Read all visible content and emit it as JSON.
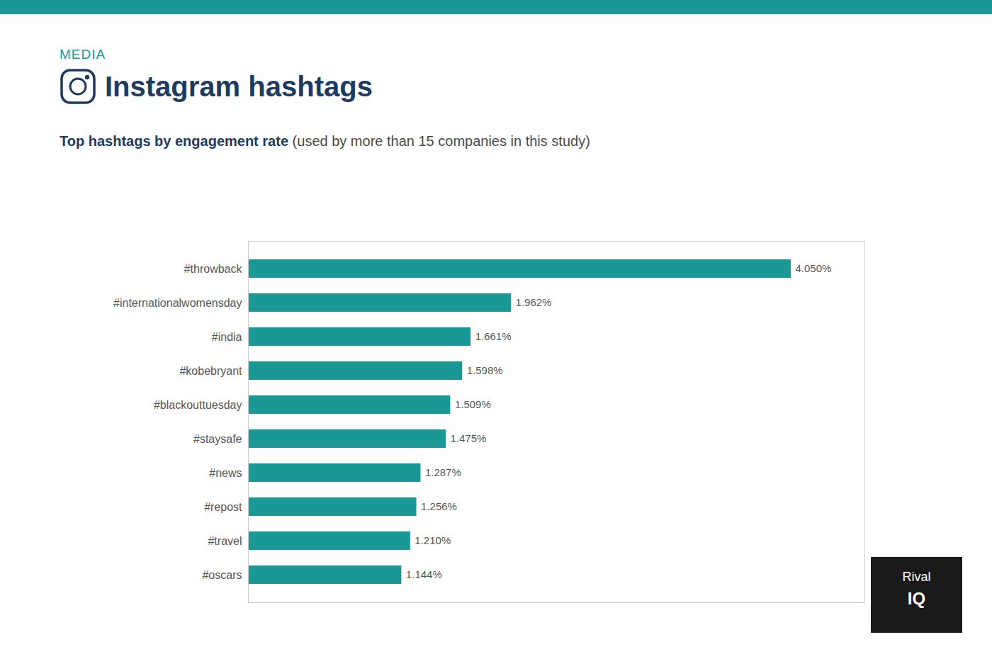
{
  "chart_data": {
    "type": "bar",
    "orientation": "horizontal",
    "title": "Instagram hashtags",
    "subtitle": "Top hashtags by engagement rate (used by more than 15 companies in this study)",
    "annotations": [
      "MEDIA",
      "Rival",
      "IQ"
    ],
    "categories": [
      "#throwback",
      "#internationalwomensday",
      "#india",
      "#kobebryant",
      "#blackouttuesday",
      "#staysafe",
      "#news",
      "#repost",
      "#travel",
      "#oscars"
    ],
    "values": [
      4.05,
      1.962,
      1.661,
      1.598,
      1.509,
      1.475,
      1.287,
      1.256,
      1.21,
      1.144
    ],
    "value_labels": [
      "4.050%",
      "1.962%",
      "1.661%",
      "1.598%",
      "1.509%",
      "1.475%",
      "1.287%",
      "1.256%",
      "1.210%",
      "1.144%"
    ],
    "data_labels": true,
    "color": "#1a9896",
    "xlim": [
      0,
      4.6
    ],
    "tick_labels": "y",
    "grid": false
  }
}
